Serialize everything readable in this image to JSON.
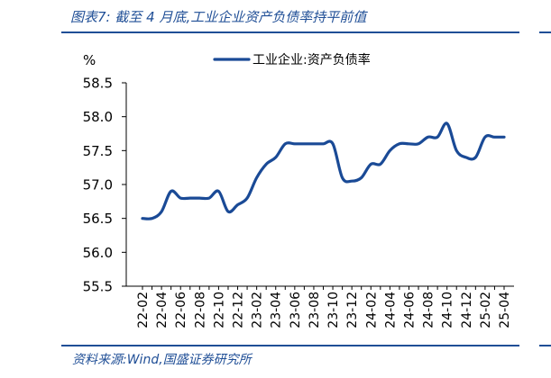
{
  "figure_title": "图表7:  截至 4 月底,工业企业资产负债率持平前值",
  "source_note": "资料来源:Wind,国盛证券研究所",
  "colors": {
    "accent": "#1f4e96",
    "series": "#1a4a96",
    "text": "#000000"
  },
  "chart_data": {
    "type": "line",
    "title": "",
    "ylabel": "%",
    "xlabel": "",
    "ylim": [
      55.5,
      58.5
    ],
    "yticks": [
      "58.5",
      "58.0",
      "57.5",
      "57.0",
      "56.5",
      "56.0",
      "55.5"
    ],
    "ytick_values": [
      58.5,
      58.0,
      57.5,
      57.0,
      56.5,
      56.0,
      55.5
    ],
    "xtick_labels": [
      "22-02",
      "22-04",
      "22-06",
      "22-08",
      "22-10",
      "22-12",
      "23-02",
      "23-04",
      "23-06",
      "23-08",
      "23-10",
      "23-12",
      "24-02",
      "24-04",
      "24-06",
      "24-08",
      "24-10",
      "24-12",
      "25-02",
      "25-04"
    ],
    "legend_position": "top",
    "grid": false,
    "x": [
      "22-02",
      "22-03",
      "22-04",
      "22-05",
      "22-06",
      "22-07",
      "22-08",
      "22-09",
      "22-10",
      "22-11",
      "22-12",
      "23-01",
      "23-02",
      "23-03",
      "23-04",
      "23-05",
      "23-06",
      "23-07",
      "23-08",
      "23-09",
      "23-10",
      "23-11",
      "23-12",
      "24-01",
      "24-02",
      "24-03",
      "24-04",
      "24-05",
      "24-06",
      "24-07",
      "24-08",
      "24-09",
      "24-10",
      "24-11",
      "24-12",
      "25-01",
      "25-02",
      "25-03",
      "25-04"
    ],
    "series": [
      {
        "name": "工业企业:资产负债率",
        "values": [
          56.5,
          56.5,
          56.6,
          56.9,
          56.8,
          56.8,
          56.8,
          56.8,
          56.9,
          56.6,
          56.7,
          56.8,
          57.1,
          57.3,
          57.4,
          57.6,
          57.6,
          57.6,
          57.6,
          57.6,
          57.6,
          57.1,
          57.05,
          57.1,
          57.3,
          57.3,
          57.5,
          57.6,
          57.6,
          57.6,
          57.7,
          57.7,
          57.9,
          57.5,
          57.4,
          57.4,
          57.7,
          57.7,
          57.7
        ]
      }
    ]
  }
}
